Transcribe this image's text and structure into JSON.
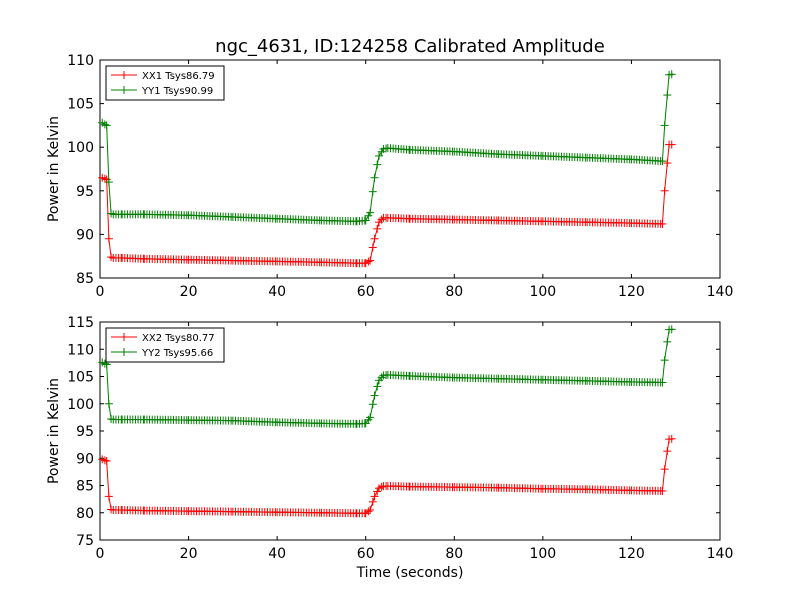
{
  "title": "ngc_4631, ID:124258 Calibrated Amplitude",
  "colors": {
    "red": "#ff0000",
    "green": "#008000"
  },
  "chart_data": [
    {
      "type": "line",
      "ylabel": "Power in Kelvin",
      "xlabel": "",
      "xlim": [
        0,
        140
      ],
      "ylim": [
        85,
        110
      ],
      "xticks": [
        "0",
        "20",
        "40",
        "60",
        "80",
        "100",
        "120",
        "140"
      ],
      "yticks": [
        "85",
        "90",
        "95",
        "100",
        "105",
        "110"
      ],
      "legend_position": "top-left",
      "grid": false,
      "series": [
        {
          "name": "XX1 Tsys86.79",
          "color": "#ff0000",
          "marker": "+",
          "x": [
            0.5,
            1.5,
            2,
            2.5,
            3,
            5,
            10,
            20,
            30,
            40,
            50,
            58,
            60,
            61,
            62,
            63,
            64,
            65,
            70,
            80,
            90,
            100,
            110,
            120,
            127,
            127.5,
            128.5,
            129.5
          ],
          "y": [
            96.5,
            96.3,
            89.5,
            87.4,
            87.3,
            87.3,
            87.2,
            87.1,
            87.0,
            86.9,
            86.8,
            86.7,
            86.7,
            87.0,
            89.5,
            91.4,
            91.9,
            91.9,
            91.8,
            91.7,
            91.6,
            91.5,
            91.4,
            91.3,
            91.2,
            95.0,
            100.3,
            100.3
          ]
        },
        {
          "name": "YY1 Tsys90.99",
          "color": "#008000",
          "marker": "+",
          "x": [
            0.5,
            1.5,
            2,
            2.5,
            3,
            5,
            10,
            20,
            30,
            40,
            50,
            58,
            60,
            61,
            62,
            63,
            64,
            65,
            70,
            80,
            90,
            100,
            110,
            120,
            127,
            127.5,
            128.5,
            129.5
          ],
          "y": [
            102.8,
            102.5,
            96.0,
            92.4,
            92.3,
            92.3,
            92.3,
            92.2,
            92.0,
            91.8,
            91.6,
            91.5,
            91.6,
            92.5,
            96.5,
            99.0,
            99.8,
            99.9,
            99.7,
            99.5,
            99.2,
            99.0,
            98.8,
            98.6,
            98.4,
            102.5,
            108.3,
            108.4
          ]
        }
      ]
    },
    {
      "type": "line",
      "ylabel": "Power in Kelvin",
      "xlabel": "Time (seconds)",
      "xlim": [
        0,
        140
      ],
      "ylim": [
        75,
        115
      ],
      "xticks": [
        "0",
        "20",
        "40",
        "60",
        "80",
        "100",
        "120",
        "140"
      ],
      "yticks": [
        "75",
        "80",
        "85",
        "90",
        "95",
        "100",
        "105",
        "110",
        "115"
      ],
      "legend_position": "top-left",
      "grid": false,
      "series": [
        {
          "name": "XX2 Tsys80.77",
          "color": "#ff0000",
          "marker": "+",
          "x": [
            0.5,
            1.5,
            2,
            2.5,
            3,
            5,
            10,
            20,
            30,
            40,
            50,
            58,
            60,
            61,
            62,
            63,
            64,
            65,
            70,
            80,
            90,
            100,
            110,
            120,
            127,
            127.5,
            128.5,
            129.5
          ],
          "y": [
            89.8,
            89.5,
            83.0,
            80.6,
            80.5,
            80.5,
            80.4,
            80.3,
            80.2,
            80.1,
            80.0,
            79.9,
            79.9,
            80.5,
            83.0,
            84.5,
            84.9,
            84.9,
            84.8,
            84.7,
            84.6,
            84.4,
            84.3,
            84.1,
            84.0,
            88.0,
            93.5,
            93.6
          ]
        },
        {
          "name": "YY2 Tsys95.66",
          "color": "#008000",
          "marker": "+",
          "x": [
            0.5,
            1.5,
            2,
            2.5,
            3,
            5,
            10,
            20,
            30,
            40,
            50,
            58,
            60,
            61,
            62,
            63,
            64,
            65,
            70,
            80,
            90,
            100,
            110,
            120,
            127,
            127.5,
            128.5,
            129.5
          ],
          "y": [
            107.6,
            107.2,
            100.0,
            97.2,
            97.1,
            97.1,
            97.1,
            97.0,
            96.9,
            96.6,
            96.4,
            96.3,
            96.4,
            97.5,
            101.5,
            104.3,
            105.2,
            105.3,
            105.1,
            104.8,
            104.6,
            104.4,
            104.2,
            104.0,
            103.9,
            108.0,
            113.6,
            113.7
          ]
        }
      ]
    }
  ]
}
